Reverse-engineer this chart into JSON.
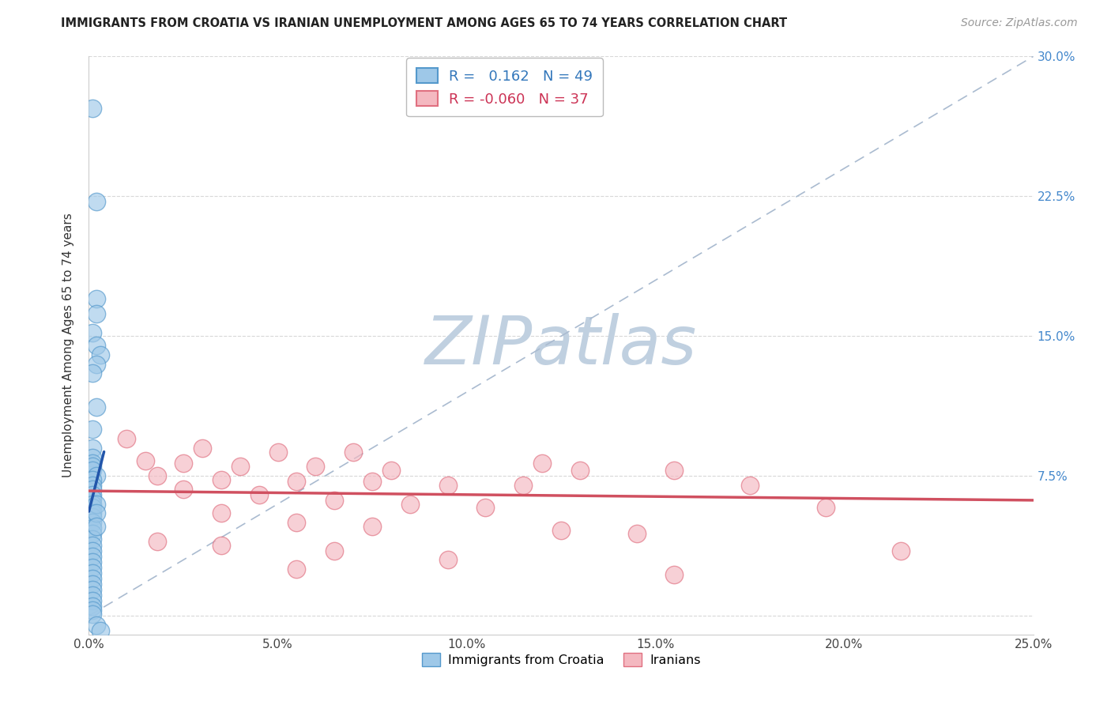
{
  "title": "IMMIGRANTS FROM CROATIA VS IRANIAN UNEMPLOYMENT AMONG AGES 65 TO 74 YEARS CORRELATION CHART",
  "source": "Source: ZipAtlas.com",
  "ylabel": "Unemployment Among Ages 65 to 74 years",
  "xlim": [
    0.0,
    0.25
  ],
  "ylim": [
    -0.01,
    0.3
  ],
  "xtick_vals": [
    0.0,
    0.05,
    0.1,
    0.15,
    0.2,
    0.25
  ],
  "xtick_labels": [
    "0.0%",
    "5.0%",
    "10.0%",
    "15.0%",
    "20.0%",
    "25.0%"
  ],
  "ytick_vals": [
    0.0,
    0.075,
    0.15,
    0.225,
    0.3
  ],
  "ytick_labels": [
    "",
    "7.5%",
    "15.0%",
    "22.5%",
    "30.0%"
  ],
  "blue_R": 0.162,
  "blue_N": 49,
  "pink_R": -0.06,
  "pink_N": 37,
  "legend_labels": [
    "Immigrants from Croatia",
    "Iranians"
  ],
  "blue_color": "#9ec8e8",
  "pink_color": "#f4b8c0",
  "blue_edge_color": "#5599cc",
  "pink_edge_color": "#e07080",
  "blue_line_color": "#2255aa",
  "pink_line_color": "#d05060",
  "diag_color": "#aabbd0",
  "watermark_zip": "#c0d0e0",
  "watermark_atlas": "#c8d8e8",
  "blue_scatter": [
    [
      0.001,
      0.272
    ],
    [
      0.002,
      0.222
    ],
    [
      0.002,
      0.17
    ],
    [
      0.002,
      0.162
    ],
    [
      0.001,
      0.152
    ],
    [
      0.002,
      0.145
    ],
    [
      0.003,
      0.14
    ],
    [
      0.002,
      0.135
    ],
    [
      0.001,
      0.13
    ],
    [
      0.002,
      0.112
    ],
    [
      0.001,
      0.1
    ],
    [
      0.001,
      0.09
    ],
    [
      0.001,
      0.085
    ],
    [
      0.001,
      0.082
    ],
    [
      0.001,
      0.08
    ],
    [
      0.001,
      0.078
    ],
    [
      0.002,
      0.075
    ],
    [
      0.001,
      0.073
    ],
    [
      0.001,
      0.07
    ],
    [
      0.001,
      0.068
    ],
    [
      0.001,
      0.065
    ],
    [
      0.001,
      0.063
    ],
    [
      0.001,
      0.06
    ],
    [
      0.001,
      0.058
    ],
    [
      0.001,
      0.055
    ],
    [
      0.001,
      0.053
    ],
    [
      0.001,
      0.05
    ],
    [
      0.001,
      0.047
    ],
    [
      0.001,
      0.044
    ],
    [
      0.001,
      0.041
    ],
    [
      0.001,
      0.038
    ],
    [
      0.001,
      0.035
    ],
    [
      0.001,
      0.032
    ],
    [
      0.001,
      0.029
    ],
    [
      0.001,
      0.026
    ],
    [
      0.001,
      0.023
    ],
    [
      0.001,
      0.02
    ],
    [
      0.001,
      0.017
    ],
    [
      0.001,
      0.014
    ],
    [
      0.001,
      0.011
    ],
    [
      0.001,
      0.008
    ],
    [
      0.001,
      0.005
    ],
    [
      0.001,
      0.003
    ],
    [
      0.001,
      0.001
    ],
    [
      0.002,
      0.06
    ],
    [
      0.002,
      0.055
    ],
    [
      0.002,
      0.048
    ],
    [
      0.002,
      -0.005
    ],
    [
      0.003,
      -0.008
    ]
  ],
  "pink_scatter": [
    [
      0.01,
      0.095
    ],
    [
      0.03,
      0.09
    ],
    [
      0.05,
      0.088
    ],
    [
      0.07,
      0.088
    ],
    [
      0.015,
      0.083
    ],
    [
      0.025,
      0.082
    ],
    [
      0.12,
      0.082
    ],
    [
      0.04,
      0.08
    ],
    [
      0.06,
      0.08
    ],
    [
      0.08,
      0.078
    ],
    [
      0.13,
      0.078
    ],
    [
      0.155,
      0.078
    ],
    [
      0.018,
      0.075
    ],
    [
      0.035,
      0.073
    ],
    [
      0.055,
      0.072
    ],
    [
      0.075,
      0.072
    ],
    [
      0.095,
      0.07
    ],
    [
      0.115,
      0.07
    ],
    [
      0.175,
      0.07
    ],
    [
      0.025,
      0.068
    ],
    [
      0.045,
      0.065
    ],
    [
      0.065,
      0.062
    ],
    [
      0.085,
      0.06
    ],
    [
      0.105,
      0.058
    ],
    [
      0.195,
      0.058
    ],
    [
      0.035,
      0.055
    ],
    [
      0.055,
      0.05
    ],
    [
      0.075,
      0.048
    ],
    [
      0.125,
      0.046
    ],
    [
      0.145,
      0.044
    ],
    [
      0.018,
      0.04
    ],
    [
      0.035,
      0.038
    ],
    [
      0.065,
      0.035
    ],
    [
      0.215,
      0.035
    ],
    [
      0.095,
      0.03
    ],
    [
      0.055,
      0.025
    ],
    [
      0.155,
      0.022
    ]
  ],
  "blue_trend_x": [
    0.0,
    0.004
  ],
  "blue_trend_y": [
    0.056,
    0.088
  ],
  "pink_trend_x": [
    0.0,
    0.25
  ],
  "pink_trend_y": [
    0.067,
    0.062
  ]
}
